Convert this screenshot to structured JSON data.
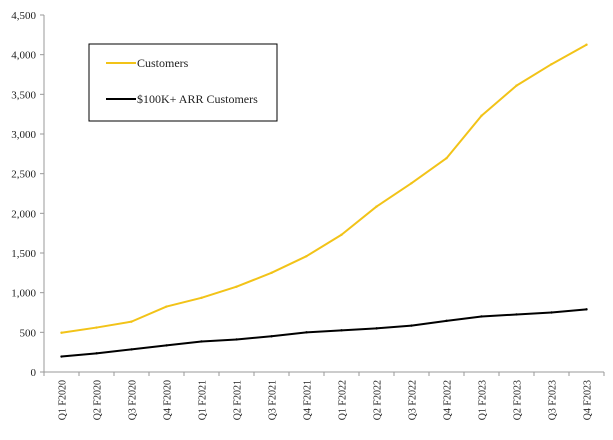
{
  "chart_data": {
    "type": "line",
    "title": "",
    "xlabel": "",
    "ylabel": "",
    "categories": [
      "Q1 F2020",
      "Q2 F2020",
      "Q3 F2020",
      "Q4 F2020",
      "Q1 F2021",
      "Q2 F2021",
      "Q3 F2021",
      "Q4 F2021",
      "Q1 F2022",
      "Q2 F2022",
      "Q3 F2022",
      "Q4 F2022",
      "Q1 F2023",
      "Q2 F2023",
      "Q3 F2023",
      "Q4 F2023"
    ],
    "ylim": [
      0,
      4500
    ],
    "yticks": [
      0,
      500,
      1000,
      1500,
      2000,
      2500,
      3000,
      3500,
      4000,
      4500
    ],
    "ytick_labels": [
      "0",
      "500",
      "1,000",
      "1,500",
      "2,000",
      "2,500",
      "3,000",
      "3,500",
      "4,000",
      "4,500"
    ],
    "grid": false,
    "legend_position": "top-left",
    "series": [
      {
        "name": "Customers",
        "color": "#F2C318",
        "values": [
          495,
          560,
          635,
          825,
          935,
          1075,
          1250,
          1460,
          1730,
          2085,
          2380,
          2695,
          3230,
          3610,
          3880,
          4125
        ]
      },
      {
        "name": "$100K+ ARR Customers",
        "color": "#000000",
        "values": [
          195,
          235,
          285,
          335,
          385,
          410,
          450,
          500,
          525,
          550,
          585,
          645,
          700,
          725,
          750,
          790
        ]
      }
    ]
  }
}
